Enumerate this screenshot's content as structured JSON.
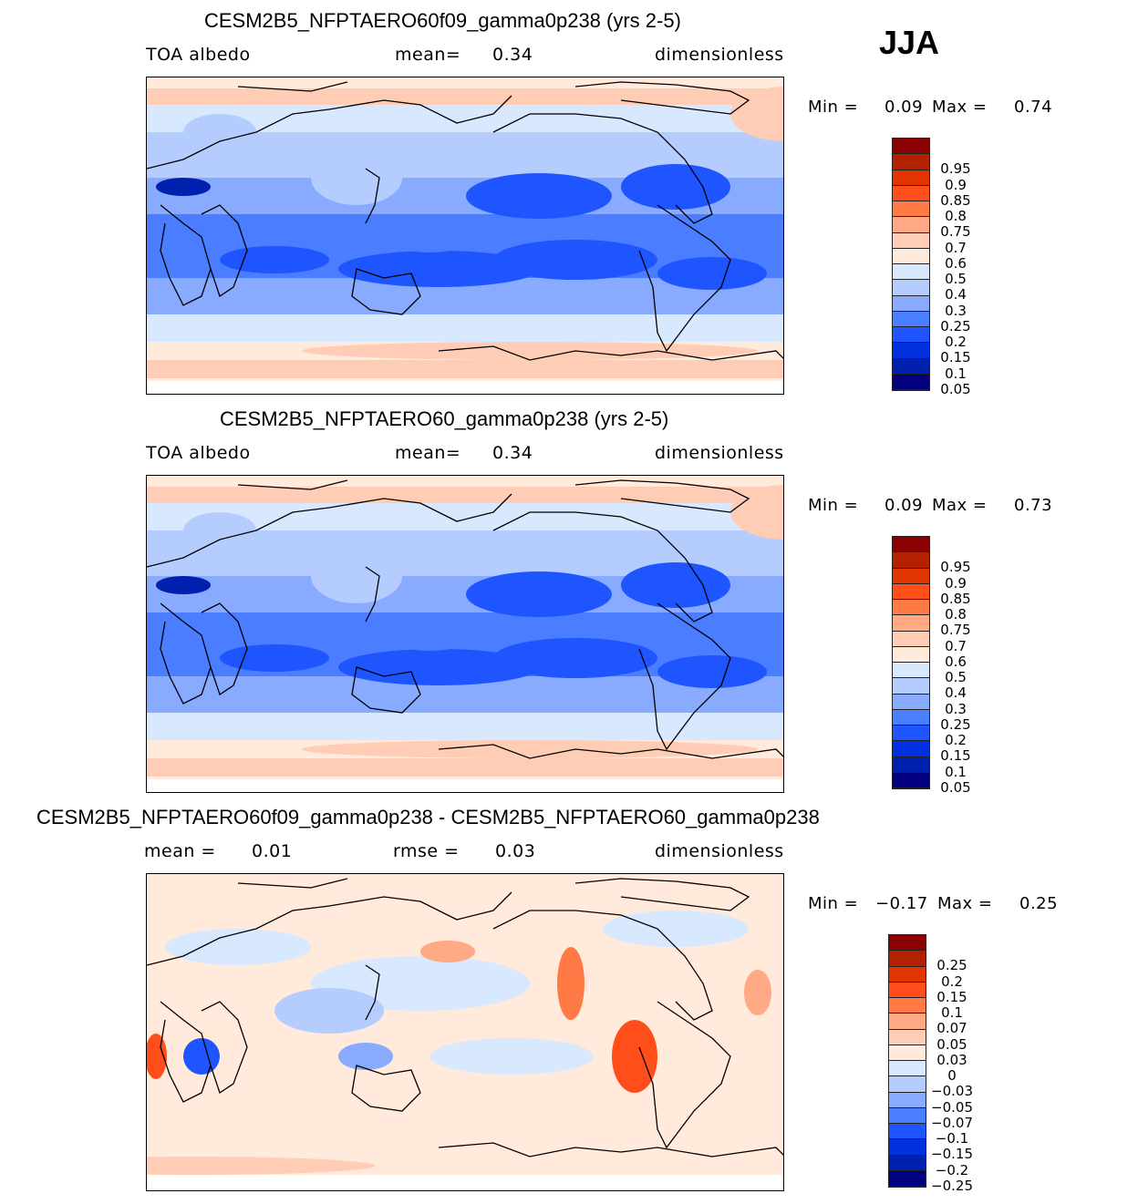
{
  "season": "JJA",
  "panels": [
    {
      "title": "CESM2B5_NFPTAERO60f09_gamma0p238 (yrs 2-5)",
      "left": "TOA  albedo",
      "mean_label": "mean=",
      "mean_value": "0.34",
      "units": "dimensionless",
      "min_label": "Min  =",
      "min_value": "0.09",
      "max_label": "Max  =",
      "max_value": "0.74"
    },
    {
      "title": "CESM2B5_NFPTAERO60_gamma0p238 (yrs 2-5)",
      "left": "TOA  albedo",
      "mean_label": "mean=",
      "mean_value": "0.34",
      "units": "dimensionless",
      "min_label": "Min  =",
      "min_value": "0.09",
      "max_label": "Max  =",
      "max_value": "0.73"
    },
    {
      "title": "CESM2B5_NFPTAERO60f09_gamma0p238 - CESM2B5_NFPTAERO60_gamma0p238",
      "mean_label": "mean  =",
      "mean_value": "0.01",
      "rmse_label": "rmse  =",
      "rmse_value": "0.03",
      "units": "dimensionless",
      "min_label": "Min  =",
      "min_value": "−0.17",
      "max_label": "Max  =",
      "max_value": "0.25"
    }
  ],
  "colors": [
    "#000080",
    "#0020b0",
    "#0030e0",
    "#1f55ff",
    "#4a7dff",
    "#88aaff",
    "#b5ccff",
    "#d8e8ff",
    "#ffeadb",
    "#ffcdb5",
    "#ffa985",
    "#ff7a45",
    "#ff4e1a",
    "#e03500",
    "#b22200",
    "#8b0000"
  ],
  "levels_abs": [
    "0.05",
    "0.1",
    "0.15",
    "0.2",
    "0.25",
    "0.3",
    "0.4",
    "0.5",
    "0.6",
    "0.7",
    "0.75",
    "0.8",
    "0.85",
    "0.9",
    "0.95"
  ],
  "levels_diff": [
    "−0.25",
    "−0.2",
    "−0.15",
    "−0.1",
    "−0.07",
    "−0.05",
    "−0.03",
    "0",
    "0.03",
    "0.05",
    "0.07",
    "0.1",
    "0.15",
    "0.2",
    "0.25"
  ]
}
